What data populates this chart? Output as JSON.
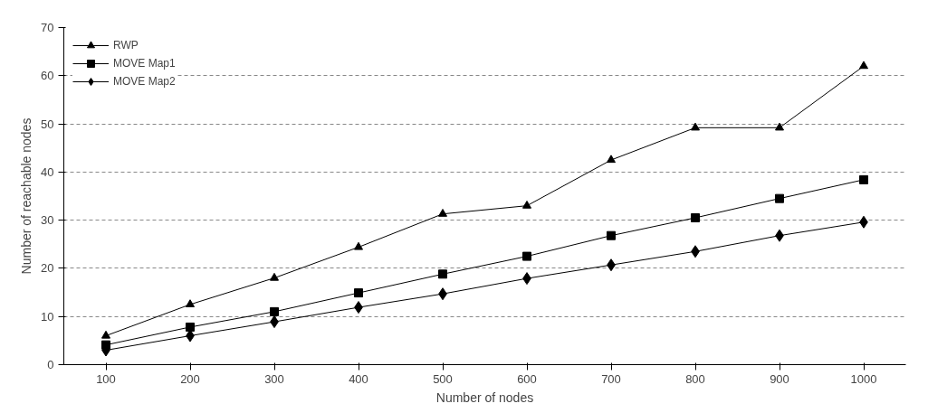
{
  "chart_data": {
    "type": "line",
    "xlabel": "Number of nodes",
    "ylabel": "Number of reachable nodes",
    "categories": [
      "100",
      "200",
      "300",
      "400",
      "500",
      "600",
      "700",
      "800",
      "900",
      "1000"
    ],
    "ylim": [
      0,
      70
    ],
    "yticks": [
      0,
      10,
      20,
      30,
      40,
      50,
      60,
      70
    ],
    "grid": "y",
    "legend": "top left",
    "line_style": "solid",
    "series": [
      {
        "name": "RWP",
        "color": "#000000",
        "marker": "triangle",
        "values": [
          6,
          12.5,
          18,
          24.4,
          31.3,
          33,
          42.5,
          49.2,
          49.2,
          62
        ]
      },
      {
        "name": "MOVE Map1",
        "color": "#000000",
        "marker": "square",
        "values": [
          4.1,
          7.8,
          11,
          14.9,
          18.8,
          22.5,
          26.8,
          30.5,
          34.5,
          38.4
        ]
      },
      {
        "name": "MOVE Map2",
        "color": "#000000",
        "marker": "diamond",
        "values": [
          3,
          6,
          8.9,
          11.9,
          14.7,
          17.9,
          20.7,
          23.5,
          26.8,
          29.6
        ]
      }
    ]
  }
}
